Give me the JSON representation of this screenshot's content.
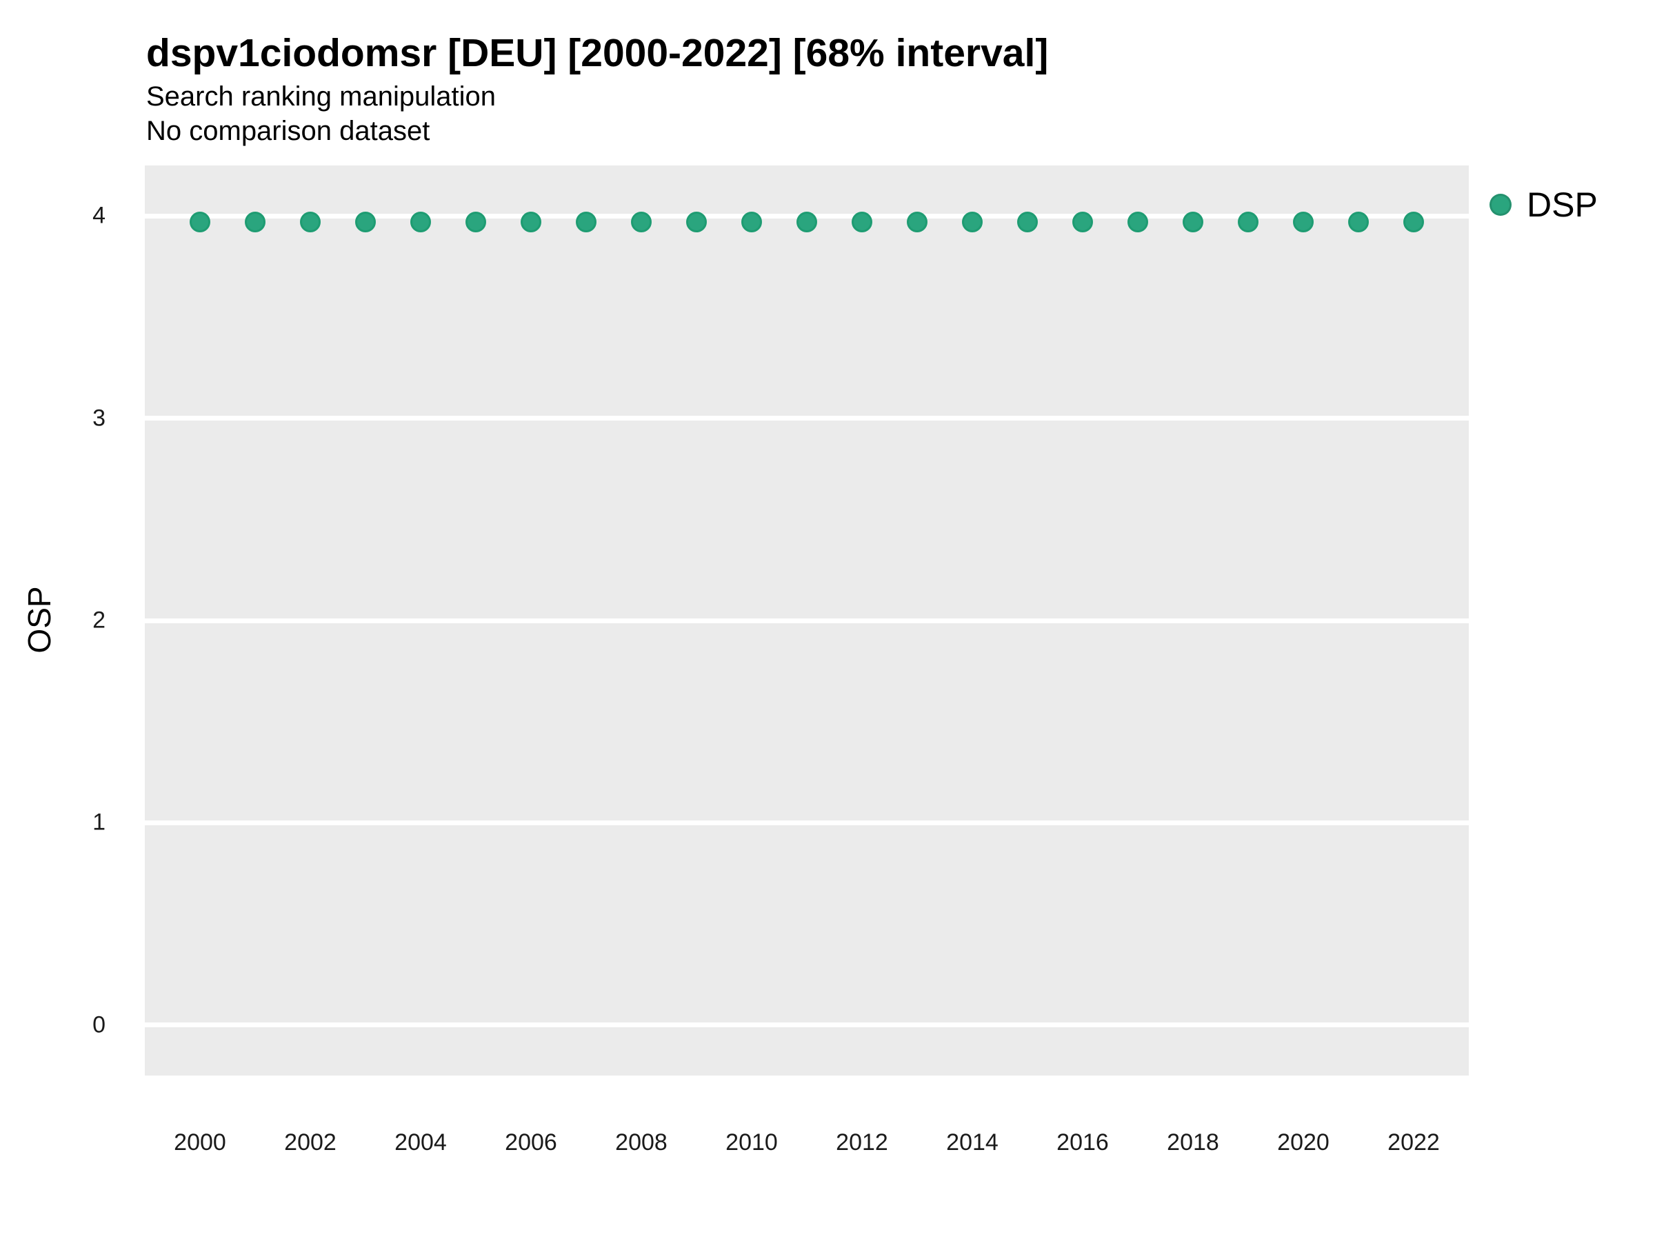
{
  "header": {
    "title": "dspv1ciodomsr [DEU] [2000-2022] [68% interval]",
    "subtitle": "Search ranking manipulation",
    "note": "No comparison dataset"
  },
  "axes": {
    "y_label": "OSP"
  },
  "legend": {
    "position": "right",
    "entries": [
      {
        "label": "DSP",
        "color": "#2aa57e",
        "marker": "circle-icon"
      }
    ]
  },
  "colors": {
    "panel_background": "#ebebeb",
    "gridline": "#ffffff",
    "point_fill": "#2aa57e",
    "point_stroke": "#1e9c72",
    "text": "#000000",
    "tick_text": "#1a1a1a"
  },
  "chart_data": {
    "type": "scatter",
    "title": "dspv1ciodomsr [DEU] [2000-2022] [68% interval]",
    "subtitle": "Search ranking manipulation",
    "annotation": "No comparison dataset",
    "xlabel": "",
    "ylabel": "OSP",
    "x": [
      2000,
      2001,
      2002,
      2003,
      2004,
      2005,
      2006,
      2007,
      2008,
      2009,
      2010,
      2011,
      2012,
      2013,
      2014,
      2015,
      2016,
      2017,
      2018,
      2019,
      2020,
      2021,
      2022
    ],
    "series": [
      {
        "name": "DSP",
        "values": [
          3.97,
          3.97,
          3.97,
          3.97,
          3.97,
          3.97,
          3.97,
          3.97,
          3.97,
          3.97,
          3.97,
          3.97,
          3.97,
          3.97,
          3.97,
          3.97,
          3.97,
          3.97,
          3.97,
          3.97,
          3.97,
          3.97,
          3.97
        ]
      }
    ],
    "xticks": [
      2000,
      2002,
      2004,
      2006,
      2008,
      2010,
      2012,
      2014,
      2016,
      2018,
      2020,
      2022
    ],
    "yticks": [
      0,
      1,
      2,
      3,
      4
    ],
    "xlim": [
      1999,
      2023
    ],
    "ylim": [
      -0.25,
      4.25
    ],
    "grid": "horizontal-major-only",
    "legend_position": "right"
  }
}
